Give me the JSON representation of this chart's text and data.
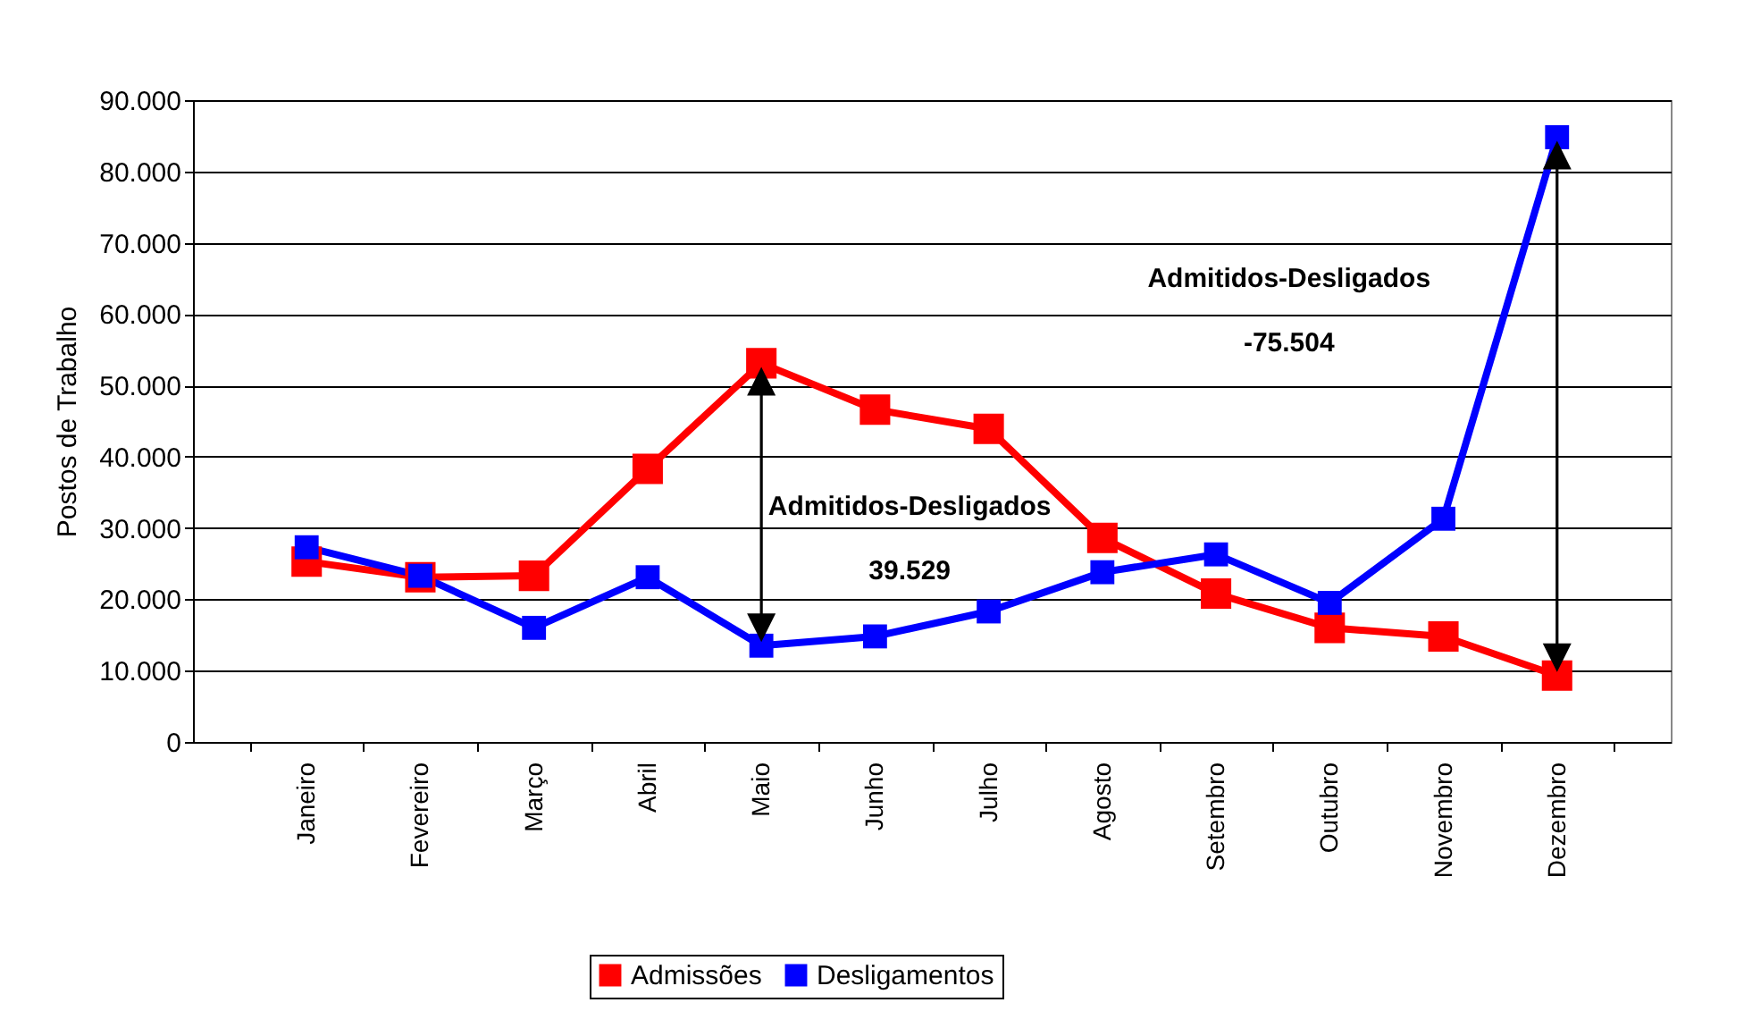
{
  "chart_data": {
    "type": "line",
    "ylabel": "Postos de Trabalho",
    "categories": [
      "Janeiro",
      "Fevereiro",
      "Março",
      "Abril",
      "Maio",
      "Junho",
      "Julho",
      "Agosto",
      "Setembro",
      "Outubro",
      "Novembro",
      "Dezembro"
    ],
    "series": [
      {
        "name": "Admissões",
        "color": "#ff0000",
        "values": [
          25300,
          23100,
          23300,
          38300,
          53100,
          46600,
          43900,
          28600,
          20800,
          16000,
          14800,
          9300
        ]
      },
      {
        "name": "Desligamentos",
        "color": "#0000ff",
        "values": [
          27300,
          23300,
          16000,
          23100,
          13500,
          14800,
          18300,
          23800,
          26300,
          19500,
          31300,
          84800
        ]
      }
    ],
    "ylim": [
      0,
      90000
    ],
    "yticks": [
      {
        "value": 0,
        "label": "0"
      },
      {
        "value": 10000,
        "label": "10.000"
      },
      {
        "value": 20000,
        "label": "20.000"
      },
      {
        "value": 30000,
        "label": "30.000"
      },
      {
        "value": 40000,
        "label": "40.000"
      },
      {
        "value": 50000,
        "label": "50.000"
      },
      {
        "value": 60000,
        "label": "60.000"
      },
      {
        "value": 70000,
        "label": "70.000"
      },
      {
        "value": 80000,
        "label": "80.000"
      },
      {
        "value": 90000,
        "label": "90.000"
      }
    ],
    "annotations": [
      "Admitidos-Desligados\n39.529",
      "Admitidos-Desligados\n-75.504"
    ],
    "grid": "y",
    "legend": "bottom",
    "marker": "square",
    "line_style": "solid"
  }
}
